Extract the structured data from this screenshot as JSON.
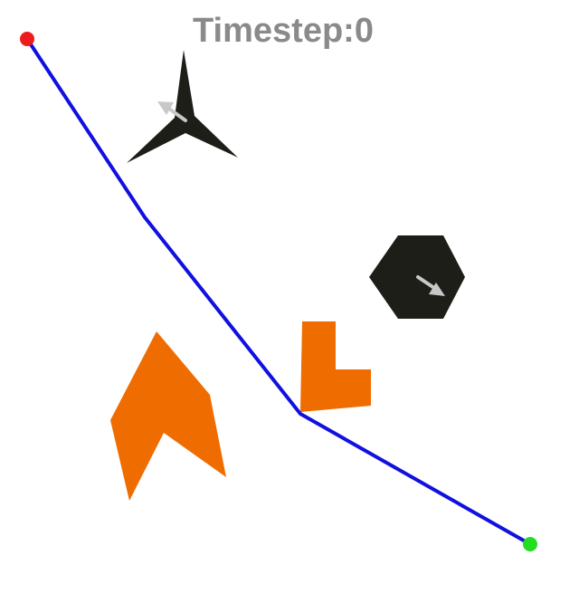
{
  "hud": {
    "timestep_label": "Timestep:0",
    "label_color": "#8a8a8a"
  },
  "path": {
    "color": "#1010e0",
    "start_color": "#ee1c1c",
    "goal_color": "#22dd22"
  },
  "colors": {
    "static_obstacle": "#ef6c00",
    "dynamic_obstacle": "#1e1e18",
    "velocity_arrow": "#c8c8c8",
    "background": "#ffffff"
  },
  "obstacles": {
    "dynamic": [
      {
        "name": "tri-star-obstacle",
        "shape": "three-pointed-star"
      },
      {
        "name": "hexagon-obstacle",
        "shape": "hexagon"
      }
    ],
    "static": [
      {
        "name": "chevron-obstacle",
        "shape": "chevron"
      },
      {
        "name": "l-block-obstacle",
        "shape": "L"
      }
    ]
  }
}
